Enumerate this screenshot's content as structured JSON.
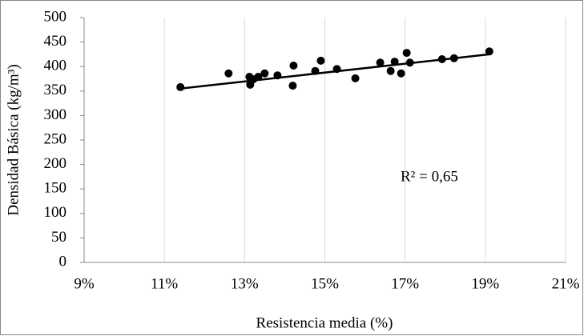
{
  "chart_data": {
    "type": "scatter",
    "x_label": "Resistencia media (%)",
    "y_label": "Densidad Básica (kg/m³)",
    "annotation": "R² = 0,65",
    "color": "#000000",
    "x": [
      11.4,
      12.6,
      13.12,
      13.14,
      13.22,
      13.34,
      13.5,
      13.82,
      14.2,
      14.22,
      14.76,
      14.9,
      15.3,
      15.76,
      16.38,
      16.64,
      16.74,
      16.9,
      17.04,
      17.12,
      17.92,
      18.22,
      19.1
    ],
    "values": [
      358,
      386,
      379,
      363,
      374,
      379,
      386,
      382,
      361,
      402,
      391,
      412,
      395,
      376,
      408,
      391,
      410,
      386,
      428,
      408,
      415,
      417,
      431
    ],
    "trendline": {
      "x": [
        11.4,
        19.1
      ],
      "values": [
        355,
        425
      ]
    },
    "xlim": [
      9,
      21
    ],
    "ylim": [
      0,
      500
    ],
    "xticks": [
      {
        "value": 9,
        "label": "9%"
      },
      {
        "value": 11,
        "label": "11%"
      },
      {
        "value": 13,
        "label": "13%"
      },
      {
        "value": 15,
        "label": "15%"
      },
      {
        "value": 17,
        "label": "17%"
      },
      {
        "value": 19,
        "label": "19%"
      },
      {
        "value": 21,
        "label": "21%"
      }
    ],
    "yticks": [
      0,
      50,
      100,
      150,
      200,
      250,
      300,
      350,
      400,
      450,
      500
    ],
    "grid": true
  }
}
